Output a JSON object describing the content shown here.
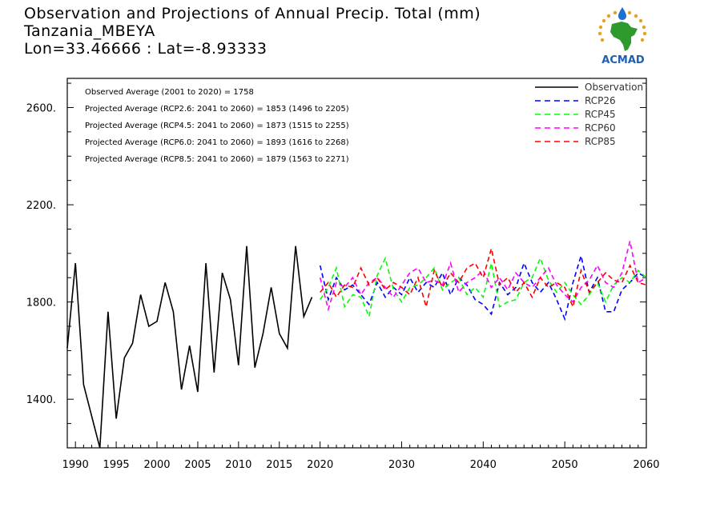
{
  "header": {
    "line1": "Observation and Projections of Annual Precip. Total (mm)",
    "line2": "Tanzania_MBEYA",
    "line3": "Lon=33.46666 : Lat=-8.93333"
  },
  "logo": {
    "text": "ACMAD",
    "icon": "africa-logo-icon"
  },
  "notes": [
    "Observed Average (2001 to 2020) = 1758",
    "Projected Average (RCP2.6: 2041 to 2060) = 1853 (1496 to 2205)",
    "Projected Average (RCP4.5: 2041 to 2060) = 1873 (1515 to 2255)",
    "Projected Average (RCP6.0: 2041 to 2060) = 1893 (1616 to 2268)",
    "Projected Average (RCP8.5: 2041 to 2060) = 1879 (1563 to 2271)"
  ],
  "chart_data": {
    "type": "line",
    "xlim": [
      1989,
      2060
    ],
    "ylim": [
      1200,
      2720
    ],
    "yticks": [
      1400,
      1800,
      2200,
      2600
    ],
    "ytick_labels": [
      "1400.",
      "1800.",
      "2200.",
      "2600."
    ],
    "xticks_labeled": [
      1990,
      1995,
      2000,
      2005,
      2010,
      2015,
      2020,
      2030,
      2040,
      2050,
      2060
    ],
    "xtick_labels": [
      "1990",
      "1995",
      "2000",
      "2005",
      "2010",
      "2015",
      "2020",
      "2030",
      "2040",
      "2050",
      "2060"
    ],
    "legend_position": "top-right",
    "grid": false,
    "series": [
      {
        "name": "Observation",
        "color": "#000000",
        "dash": "solid",
        "x": [
          1989,
          1990,
          1991,
          1992,
          1993,
          1994,
          1995,
          1996,
          1997,
          1998,
          1999,
          2000,
          2001,
          2002,
          2003,
          2004,
          2005,
          2006,
          2007,
          2008,
          2009,
          2010,
          2011,
          2012,
          2013,
          2014,
          2015,
          2016,
          2017,
          2018,
          2019
        ],
        "values": [
          1610,
          1960,
          1460,
          1330,
          1200,
          1760,
          1320,
          1570,
          1630,
          1830,
          1700,
          1720,
          1880,
          1760,
          1440,
          1620,
          1430,
          1960,
          1510,
          1920,
          1810,
          1540,
          2030,
          1530,
          1670,
          1860,
          1670,
          1610,
          2030,
          1740,
          1820
        ]
      },
      {
        "name": "RCP26",
        "color": "#0000ff",
        "dash": "dashed",
        "x": [
          2020,
          2021,
          2022,
          2023,
          2024,
          2025,
          2026,
          2027,
          2028,
          2029,
          2030,
          2031,
          2032,
          2033,
          2034,
          2035,
          2036,
          2037,
          2038,
          2039,
          2040,
          2041,
          2042,
          2043,
          2044,
          2045,
          2046,
          2047,
          2048,
          2049,
          2050,
          2051,
          2052,
          2053,
          2054,
          2055,
          2056,
          2057,
          2058,
          2059,
          2060
        ],
        "values": [
          1950,
          1810,
          1900,
          1850,
          1870,
          1830,
          1790,
          1880,
          1820,
          1860,
          1830,
          1900,
          1840,
          1880,
          1860,
          1920,
          1830,
          1900,
          1870,
          1810,
          1790,
          1750,
          1880,
          1830,
          1860,
          1960,
          1880,
          1840,
          1880,
          1810,
          1730,
          1880,
          1990,
          1840,
          1900,
          1760,
          1760,
          1850,
          1880,
          1920,
          1900
        ]
      },
      {
        "name": "RCP45",
        "color": "#00ff00",
        "dash": "dashed",
        "x": [
          2020,
          2021,
          2022,
          2023,
          2024,
          2025,
          2026,
          2027,
          2028,
          2029,
          2030,
          2031,
          2032,
          2033,
          2034,
          2035,
          2036,
          2037,
          2038,
          2039,
          2040,
          2041,
          2042,
          2043,
          2044,
          2045,
          2046,
          2047,
          2048,
          2049,
          2050,
          2051,
          2052,
          2053,
          2054,
          2055,
          2056,
          2057,
          2058,
          2059,
          2060
        ],
        "values": [
          1810,
          1860,
          1940,
          1780,
          1830,
          1820,
          1740,
          1910,
          1980,
          1850,
          1800,
          1860,
          1870,
          1900,
          1940,
          1850,
          1880,
          1900,
          1830,
          1860,
          1820,
          1960,
          1780,
          1800,
          1810,
          1880,
          1900,
          1980,
          1890,
          1840,
          1880,
          1830,
          1790,
          1830,
          1880,
          1800,
          1870,
          1900,
          1880,
          1930,
          1900
        ]
      },
      {
        "name": "RCP60",
        "color": "#ff00ff",
        "dash": "dashed",
        "x": [
          2020,
          2021,
          2022,
          2023,
          2024,
          2025,
          2026,
          2027,
          2028,
          2029,
          2030,
          2031,
          2032,
          2033,
          2034,
          2035,
          2036,
          2037,
          2038,
          2039,
          2040,
          2041,
          2042,
          2043,
          2044,
          2045,
          2046,
          2047,
          2048,
          2049,
          2050,
          2051,
          2052,
          2053,
          2054,
          2055,
          2056,
          2057,
          2058,
          2059,
          2060
        ],
        "values": [
          1900,
          1770,
          1880,
          1860,
          1900,
          1830,
          1880,
          1900,
          1860,
          1820,
          1870,
          1920,
          1940,
          1880,
          1890,
          1870,
          1960,
          1840,
          1880,
          1900,
          1930,
          1860,
          1900,
          1850,
          1920,
          1880,
          1860,
          1900,
          1940,
          1870,
          1830,
          1800,
          1860,
          1890,
          1950,
          1880,
          1860,
          1920,
          2050,
          1880,
          1900
        ]
      },
      {
        "name": "RCP85",
        "color": "#ff0000",
        "dash": "dashed",
        "x": [
          2020,
          2021,
          2022,
          2023,
          2024,
          2025,
          2026,
          2027,
          2028,
          2029,
          2030,
          2031,
          2032,
          2033,
          2034,
          2035,
          2036,
          2037,
          2038,
          2039,
          2040,
          2041,
          2042,
          2043,
          2044,
          2045,
          2046,
          2047,
          2048,
          2049,
          2050,
          2051,
          2052,
          2053,
          2054,
          2055,
          2056,
          2057,
          2058,
          2059,
          2060
        ],
        "values": [
          1840,
          1880,
          1820,
          1870,
          1860,
          1940,
          1870,
          1900,
          1850,
          1880,
          1860,
          1830,
          1900,
          1780,
          1930,
          1860,
          1920,
          1880,
          1940,
          1960,
          1900,
          2020,
          1870,
          1900,
          1840,
          1880,
          1820,
          1900,
          1860,
          1880,
          1860,
          1780,
          1930,
          1840,
          1880,
          1920,
          1890,
          1880,
          1950,
          1880,
          1870
        ]
      }
    ]
  }
}
